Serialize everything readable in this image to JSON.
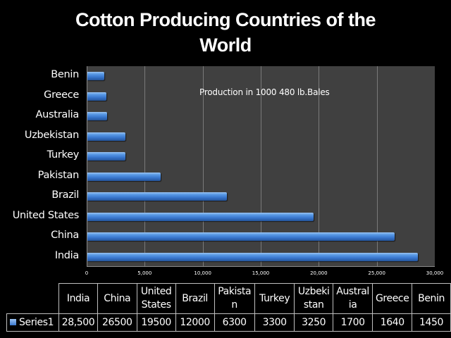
{
  "title_line1": "Cotton Producing Countries of the",
  "title_line2": "World",
  "annotation": "Production in 1000 480 lb.Bales",
  "chart_data": {
    "type": "bar",
    "orientation": "horizontal",
    "title": "Cotton Producing Countries of the World",
    "xlabel": "",
    "ylabel": "",
    "annotation": "Production in 1000 480 lb.Bales",
    "categories": [
      "India",
      "China",
      "United States",
      "Brazil",
      "Pakistan",
      "Turkey",
      "Uzbekistan",
      "Australia",
      "Greece",
      "Benin"
    ],
    "series": [
      {
        "name": "Series1",
        "values": [
          28500,
          26500,
          19500,
          12000,
          6300,
          3300,
          3250,
          1700,
          1640,
          1450
        ]
      }
    ],
    "xlim": [
      0,
      30000
    ],
    "x_ticks": [
      "0",
      "5,000",
      "10,000",
      "15,000",
      "20,000",
      "25,000",
      "30,000"
    ],
    "grid": true,
    "data_table": true,
    "legend_position": "data table"
  },
  "y_labels": [
    "Benin",
    "Greece",
    "Australia",
    "Uzbekistan",
    "Turkey",
    "Pakistan",
    "Brazil",
    "United States",
    "China",
    "India"
  ],
  "x_ticks": [
    "0",
    "5,000",
    "10,000",
    "15,000",
    "20,000",
    "25,000",
    "30,000"
  ],
  "table": {
    "headers": [
      "India",
      "China",
      "United\nStates",
      "Brazil",
      "Pakista\nn",
      "Turkey",
      "Uzbeki\nstan",
      "Austral\nia",
      "Greece",
      "Benin"
    ],
    "series_label": "Series1",
    "values": [
      "28,500",
      "26500",
      "19500",
      "12000",
      "6300",
      "3300",
      "3250",
      "1700",
      "1640",
      "1450"
    ]
  }
}
